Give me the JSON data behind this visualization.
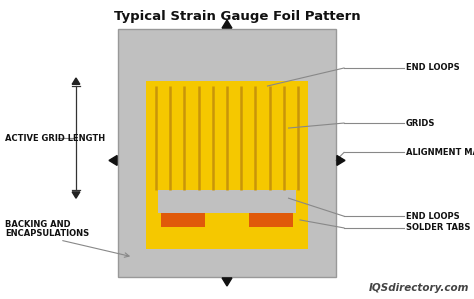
{
  "title": "Typical Strain Gauge Foil Pattern",
  "bg_color": "#c0c0c0",
  "outer_bg": "#ffffff",
  "yellow": "#F5C800",
  "yellow_dark": "#C8950A",
  "orange": "#E05A0A",
  "arrow_color": "#111111",
  "text_color": "#111111",
  "line_color": "#888888",
  "watermark": "IQSdirectory.com",
  "labels": {
    "end_loops_top": "END LOOPS",
    "grids": "GRIDS",
    "alignment_marks": "ALIGNMENT MARKS",
    "end_loops_bottom": "END LOOPS",
    "solder_tabs": "SOLDER TABS",
    "active_grid_length": "ACTIVE GRID LENGTH",
    "backing_line1": "BACKING AND",
    "backing_line2": "ENCAPSULATIONS"
  },
  "num_grid_lines": 11,
  "figsize": [
    4.74,
    2.99
  ],
  "dpi": 100
}
